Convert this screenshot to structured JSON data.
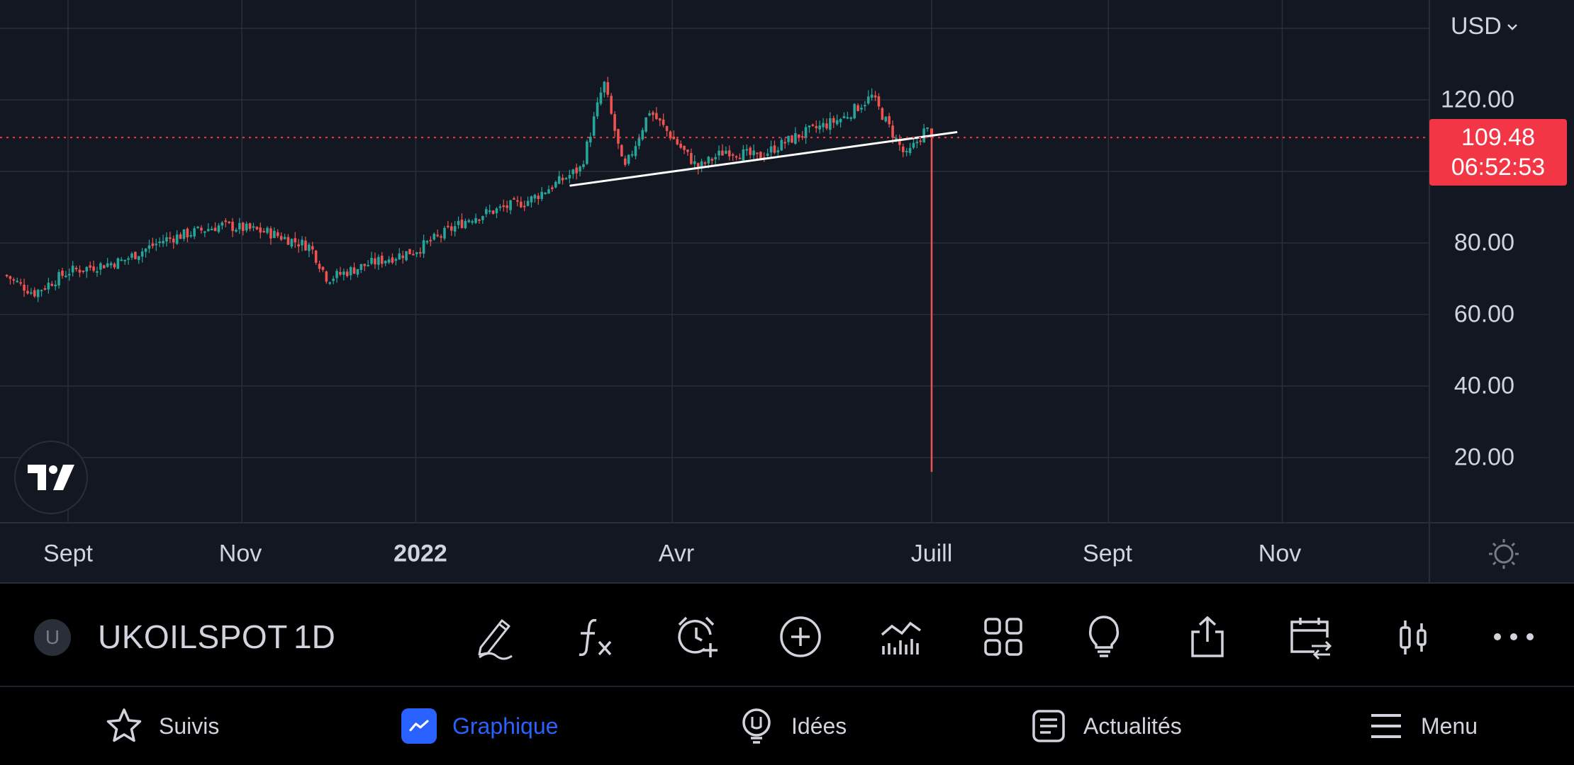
{
  "chart": {
    "currency": "USD",
    "current_price": "109.48",
    "countdown": "06:52:53",
    "price_labels": [
      "120.00",
      "80.00",
      "60.00",
      "40.00",
      "20.00"
    ],
    "time_labels": [
      "Sept",
      "Nov",
      "2022",
      "Avr",
      "Juill",
      "Sept",
      "Nov"
    ],
    "colors": {
      "background": "#131722",
      "up": "#26a69a",
      "down": "#ef5350",
      "price_tag": "#f23645",
      "grid": "#2a2e39"
    }
  },
  "chart_data": {
    "type": "candlestick",
    "symbol": "UKOILSPOT",
    "interval": "1D",
    "ylim": [
      10,
      145
    ],
    "y_ticks": [
      20,
      40,
      60,
      80,
      120
    ],
    "x_ticks": [
      "Sept",
      "Nov",
      "2022",
      "Avr",
      "Juill",
      "Sept",
      "Nov"
    ],
    "close_series_approx": [
      {
        "date": "2021-08-10",
        "close": 71
      },
      {
        "date": "2021-08-20",
        "close": 66
      },
      {
        "date": "2021-09-01",
        "close": 72
      },
      {
        "date": "2021-09-20",
        "close": 75
      },
      {
        "date": "2021-10-05",
        "close": 81
      },
      {
        "date": "2021-10-25",
        "close": 85
      },
      {
        "date": "2021-11-10",
        "close": 83
      },
      {
        "date": "2021-11-25",
        "close": 79
      },
      {
        "date": "2021-12-01",
        "close": 70
      },
      {
        "date": "2021-12-15",
        "close": 74
      },
      {
        "date": "2022-01-01",
        "close": 78
      },
      {
        "date": "2022-01-20",
        "close": 87
      },
      {
        "date": "2022-02-10",
        "close": 92
      },
      {
        "date": "2022-02-28",
        "close": 101
      },
      {
        "date": "2022-03-08",
        "close": 125
      },
      {
        "date": "2022-03-15",
        "close": 100
      },
      {
        "date": "2022-03-24",
        "close": 117
      },
      {
        "date": "2022-04-10",
        "close": 101
      },
      {
        "date": "2022-04-20",
        "close": 106
      },
      {
        "date": "2022-05-01",
        "close": 104
      },
      {
        "date": "2022-05-15",
        "close": 110
      },
      {
        "date": "2022-05-31",
        "close": 115
      },
      {
        "date": "2022-06-10",
        "close": 121
      },
      {
        "date": "2022-06-22",
        "close": 104
      },
      {
        "date": "2022-06-29",
        "close": 112
      },
      {
        "date": "2022-07-01",
        "close": 109.48
      }
    ],
    "last_bar": {
      "date": "2022-07-01",
      "open": 112,
      "high": 112,
      "low": 16,
      "close": 109.48
    },
    "trendline": {
      "from": {
        "date": "2022-02-24",
        "value": 96
      },
      "to": {
        "date": "2022-07-10",
        "value": 111
      }
    }
  },
  "toolbar": {
    "symbol_avatar": "U",
    "symbol": "UKOILSPOT",
    "interval": "1D"
  },
  "nav": {
    "items": [
      {
        "label": "Suivis",
        "icon": "star-icon"
      },
      {
        "label": "Graphique",
        "icon": "chart-icon",
        "active": true
      },
      {
        "label": "Idées",
        "icon": "lightbulb-icon"
      },
      {
        "label": "Actualités",
        "icon": "news-icon"
      },
      {
        "label": "Menu",
        "icon": "hamburger-icon"
      }
    ]
  }
}
